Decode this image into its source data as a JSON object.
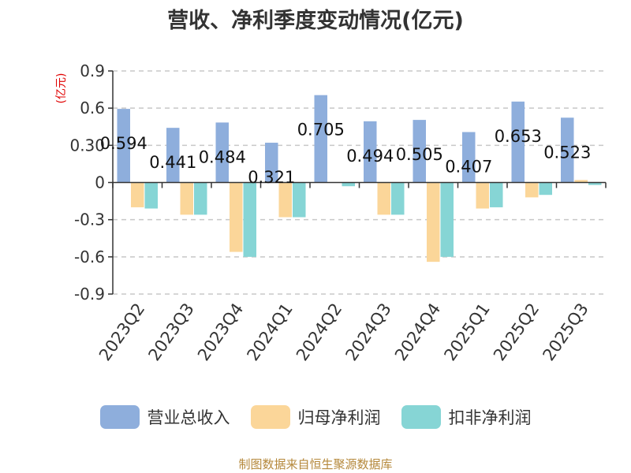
{
  "title": "营收、净利季度变动情况(亿元)",
  "source": "制图数据来自恒生聚源数据库",
  "chart_data": {
    "type": "bar",
    "title": "营收、净利季度变动情况(亿元)",
    "ylabel": "(亿元)",
    "ylim": [
      -0.9,
      0.9
    ],
    "yticks": [
      -0.9,
      -0.6,
      -0.3,
      0,
      0.3,
      0.6,
      0.9
    ],
    "ytick_labels": [
      "-0.9",
      "-0.6",
      "-0.3",
      "0",
      "0.30",
      "0.6",
      "0.9"
    ],
    "grid": true,
    "legend_position": "bottom",
    "categories": [
      "2023Q2",
      "2023Q3",
      "2023Q4",
      "2024Q1",
      "2024Q2",
      "2024Q3",
      "2024Q4",
      "2025Q1",
      "2025Q2",
      "2025Q3"
    ],
    "series": [
      {
        "name": "营业总收入",
        "color": "#8eaedc",
        "values": [
          0.594,
          0.441,
          0.484,
          0.321,
          0.705,
          0.494,
          0.505,
          0.407,
          0.653,
          0.523
        ],
        "labels": [
          "0.594",
          "0.441",
          "0.484",
          "0.321",
          "0.705",
          "0.494",
          "0.505",
          "0.407",
          "0.653",
          "0.523"
        ]
      },
      {
        "name": "归母净利润",
        "color": "#fbd699",
        "values": [
          -0.2,
          -0.26,
          -0.56,
          -0.28,
          0.0,
          -0.26,
          -0.64,
          -0.21,
          -0.12,
          0.02
        ]
      },
      {
        "name": "扣非净利润",
        "color": "#86d5d5",
        "values": [
          -0.21,
          -0.26,
          -0.6,
          -0.28,
          -0.03,
          -0.26,
          -0.6,
          -0.2,
          -0.1,
          -0.02
        ]
      }
    ]
  }
}
